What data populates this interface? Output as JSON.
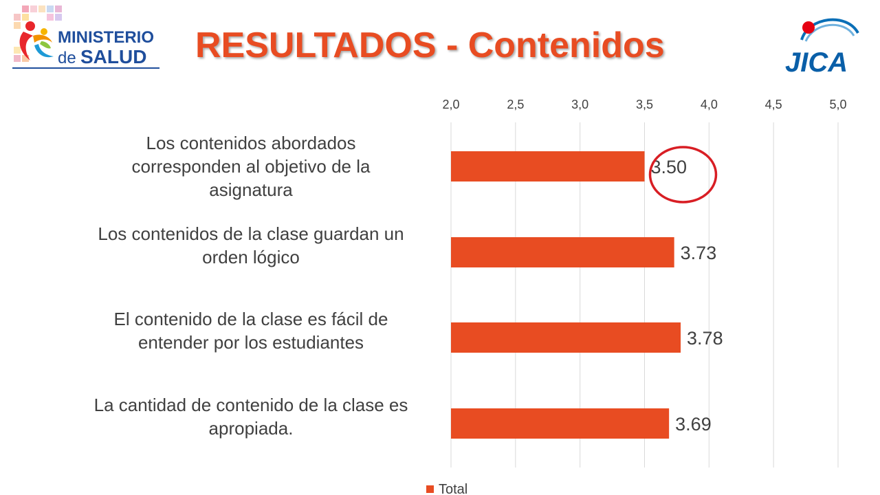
{
  "header": {
    "title": "RESULTADOS - Contenidos",
    "logo_left": {
      "line1": "MINISTERIO",
      "line2_a": "de",
      "line2_b": "SALUD"
    },
    "logo_right": {
      "text": "JICA"
    }
  },
  "colors": {
    "title": "#e84c22",
    "bar": "#e84c22",
    "highlight_circle": "#d81e24",
    "grid": "#d9d9d9",
    "text": "#404040"
  },
  "chart_data": {
    "type": "bar",
    "orientation": "horizontal",
    "categories": [
      "Los contenidos abordados corresponden al objetivo de la asignatura",
      "Los contenidos de la clase guardan un orden lógico",
      "El contenido de la clase es fácil de entender por los estudiantes",
      "La cantidad de contenido de la clase es apropiada."
    ],
    "category_lines": [
      [
        "Los contenidos abordados",
        "corresponden al objetivo de la",
        "asignatura"
      ],
      [
        "Los contenidos de la clase guardan un",
        "orden lógico"
      ],
      [
        "El contenido de la clase es fácil de",
        "entender por los estudiantes"
      ],
      [
        "La cantidad de contenido de la clase es",
        "apropiada."
      ]
    ],
    "series": [
      {
        "name": "Total",
        "values": [
          3.5,
          3.73,
          3.78,
          3.69
        ]
      }
    ],
    "data_labels": [
      "3.50",
      "3.73",
      "3.78",
      "3.69"
    ],
    "xlim": [
      2.0,
      5.0
    ],
    "xticks": [
      2.0,
      2.5,
      3.0,
      3.5,
      4.0,
      4.5,
      5.0
    ],
    "xtick_labels": [
      "2,0",
      "2,5",
      "3,0",
      "3,5",
      "4,0",
      "4,5",
      "5,0"
    ],
    "x_axis_position": "top",
    "grid": true,
    "legend": "bottom",
    "highlight": {
      "category_index": 0,
      "shape": "circle"
    }
  }
}
